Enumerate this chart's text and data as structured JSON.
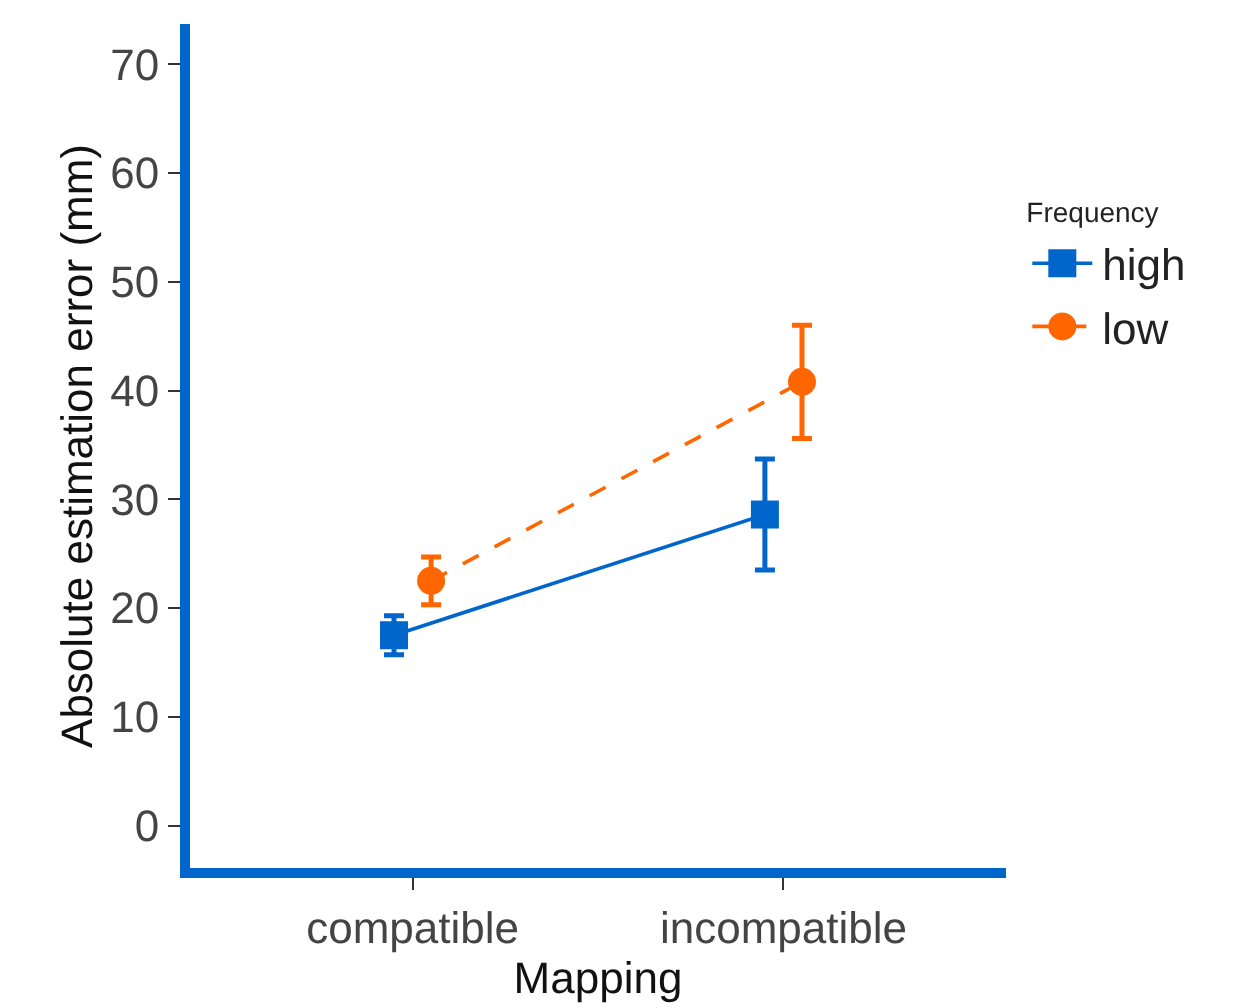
{
  "chart_data": {
    "type": "line",
    "xlabel": "Mapping",
    "ylabel": "Absolute estimation error (mm)",
    "legend_title": "Frequency",
    "categories": [
      "compatible",
      "incompatible"
    ],
    "series": [
      {
        "name": "high",
        "color": "#0066cc",
        "values": [
          17.5,
          28.6
        ],
        "errors": [
          1.8,
          5.1
        ],
        "marker": "square",
        "line_style": "solid"
      },
      {
        "name": "low",
        "color": "#ff6600",
        "values": [
          22.5,
          40.8
        ],
        "errors": [
          2.2,
          5.2
        ],
        "marker": "circle",
        "line_style": "dashed"
      }
    ],
    "ylim": [
      -3.9,
      73.7
    ],
    "yticks": [
      0,
      10,
      20,
      30,
      40,
      50,
      60,
      70
    ],
    "grid": false,
    "legend": "right"
  }
}
